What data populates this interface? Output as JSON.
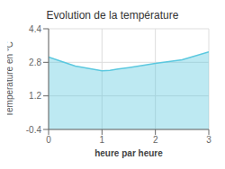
{
  "chart_data": {
    "type": "area",
    "title": "Evolution de la température",
    "xlabel": "heure par heure",
    "ylabel": "Température en °C",
    "x": [
      0,
      0.2,
      0.5,
      1.0,
      1.15,
      1.3,
      1.5,
      2.0,
      2.5,
      3.0
    ],
    "values": [
      3.05,
      2.88,
      2.62,
      2.4,
      2.42,
      2.48,
      2.55,
      2.75,
      2.92,
      3.3
    ],
    "color": "#5bc8df",
    "xlim": [
      0,
      3
    ],
    "ylim": [
      -0.4,
      4.4
    ],
    "xticks": [
      0,
      1,
      2,
      3
    ],
    "yticks": [
      -0.4,
      1.2,
      2.8,
      4.4
    ],
    "grid": true
  }
}
